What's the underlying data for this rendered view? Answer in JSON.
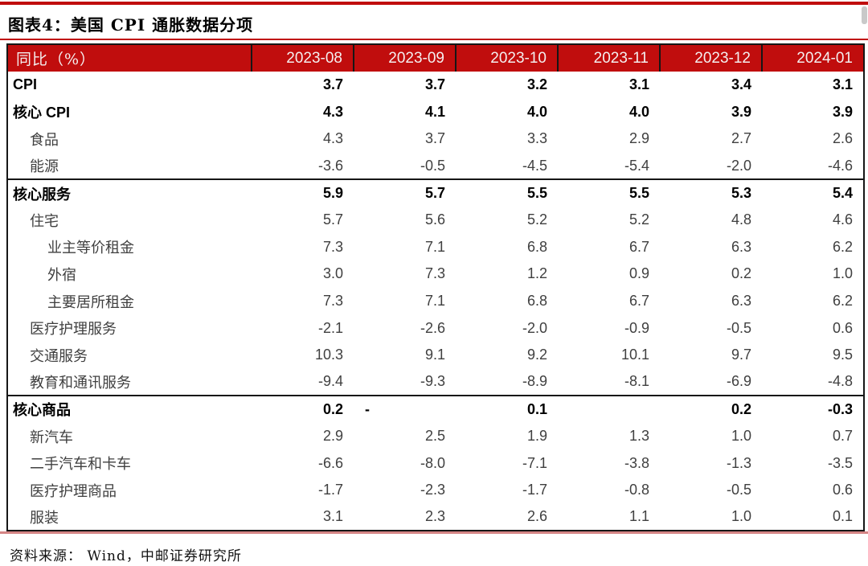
{
  "page": {
    "title": "图表4：美国 CPI 通胀数据分项",
    "source": "资料来源： Wind，中邮证券研究所"
  },
  "colors": {
    "accent_red": "#c00d0d",
    "bottom_rule_red": "#d58585",
    "border_black": "#161616",
    "value_gray": "#404040"
  },
  "chart_data": {
    "type": "table",
    "title": "图表4：美国 CPI 通胀数据分项",
    "unit_label": "同比（%）",
    "columns": [
      "2023-08",
      "2023-09",
      "2023-10",
      "2023-11",
      "2023-12",
      "2024-01"
    ],
    "rows": [
      {
        "label": "CPI",
        "indent": 0,
        "bold": true,
        "section_start": false,
        "values": [
          "3.7",
          "3.7",
          "3.2",
          "3.1",
          "3.4",
          "3.1"
        ]
      },
      {
        "label": "核心 CPI",
        "indent": 0,
        "bold": true,
        "section_start": false,
        "values": [
          "4.3",
          "4.1",
          "4.0",
          "4.0",
          "3.9",
          "3.9"
        ]
      },
      {
        "label": "食品",
        "indent": 1,
        "bold": false,
        "section_start": false,
        "values": [
          "4.3",
          "3.7",
          "3.3",
          "2.9",
          "2.7",
          "2.6"
        ]
      },
      {
        "label": "能源",
        "indent": 1,
        "bold": false,
        "section_start": false,
        "values": [
          "-3.6",
          "-0.5",
          "-4.5",
          "-5.4",
          "-2.0",
          "-4.6"
        ]
      },
      {
        "label": "核心服务",
        "indent": 0,
        "bold": true,
        "section_start": true,
        "values": [
          "5.9",
          "5.7",
          "5.5",
          "5.5",
          "5.3",
          "5.4"
        ]
      },
      {
        "label": "住宅",
        "indent": 1,
        "bold": false,
        "section_start": false,
        "values": [
          "5.7",
          "5.6",
          "5.2",
          "5.2",
          "4.8",
          "4.6"
        ]
      },
      {
        "label": "业主等价租金",
        "indent": 2,
        "bold": false,
        "section_start": false,
        "values": [
          "7.3",
          "7.1",
          "6.8",
          "6.7",
          "6.3",
          "6.2"
        ]
      },
      {
        "label": "外宿",
        "indent": 2,
        "bold": false,
        "section_start": false,
        "values": [
          "3.0",
          "7.3",
          "1.2",
          "0.9",
          "0.2",
          "1.0"
        ]
      },
      {
        "label": "主要居所租金",
        "indent": 2,
        "bold": false,
        "section_start": false,
        "values": [
          "7.3",
          "7.1",
          "6.8",
          "6.7",
          "6.3",
          "6.2"
        ]
      },
      {
        "label": "医疗护理服务",
        "indent": 1,
        "bold": false,
        "section_start": false,
        "values": [
          "-2.1",
          "-2.6",
          "-2.0",
          "-0.9",
          "-0.5",
          "0.6"
        ]
      },
      {
        "label": "交通服务",
        "indent": 1,
        "bold": false,
        "section_start": false,
        "values": [
          "10.3",
          "9.1",
          "9.2",
          "10.1",
          "9.7",
          "9.5"
        ]
      },
      {
        "label": "教育和通讯服务",
        "indent": 1,
        "bold": false,
        "section_start": false,
        "values": [
          "-9.4",
          "-9.3",
          "-8.9",
          "-8.1",
          "-6.9",
          "-4.8"
        ]
      },
      {
        "label": "核心商品",
        "indent": 0,
        "bold": true,
        "section_start": true,
        "values": [
          "0.2",
          "-",
          "0.1",
          "",
          "0.2",
          "-0.3"
        ]
      },
      {
        "label": "新汽车",
        "indent": 1,
        "bold": false,
        "section_start": false,
        "values": [
          "2.9",
          "2.5",
          "1.9",
          "1.3",
          "1.0",
          "0.7"
        ]
      },
      {
        "label": "二手汽车和卡车",
        "indent": 1,
        "bold": false,
        "section_start": false,
        "values": [
          "-6.6",
          "-8.0",
          "-7.1",
          "-3.8",
          "-1.3",
          "-3.5"
        ]
      },
      {
        "label": "医疗护理商品",
        "indent": 1,
        "bold": false,
        "section_start": false,
        "values": [
          "-1.7",
          "-2.3",
          "-1.7",
          "-0.8",
          "-0.5",
          "0.6"
        ]
      },
      {
        "label": "服装",
        "indent": 1,
        "bold": false,
        "section_start": false,
        "values": [
          "3.1",
          "2.3",
          "2.6",
          "1.1",
          "1.0",
          "0.1"
        ]
      }
    ]
  }
}
